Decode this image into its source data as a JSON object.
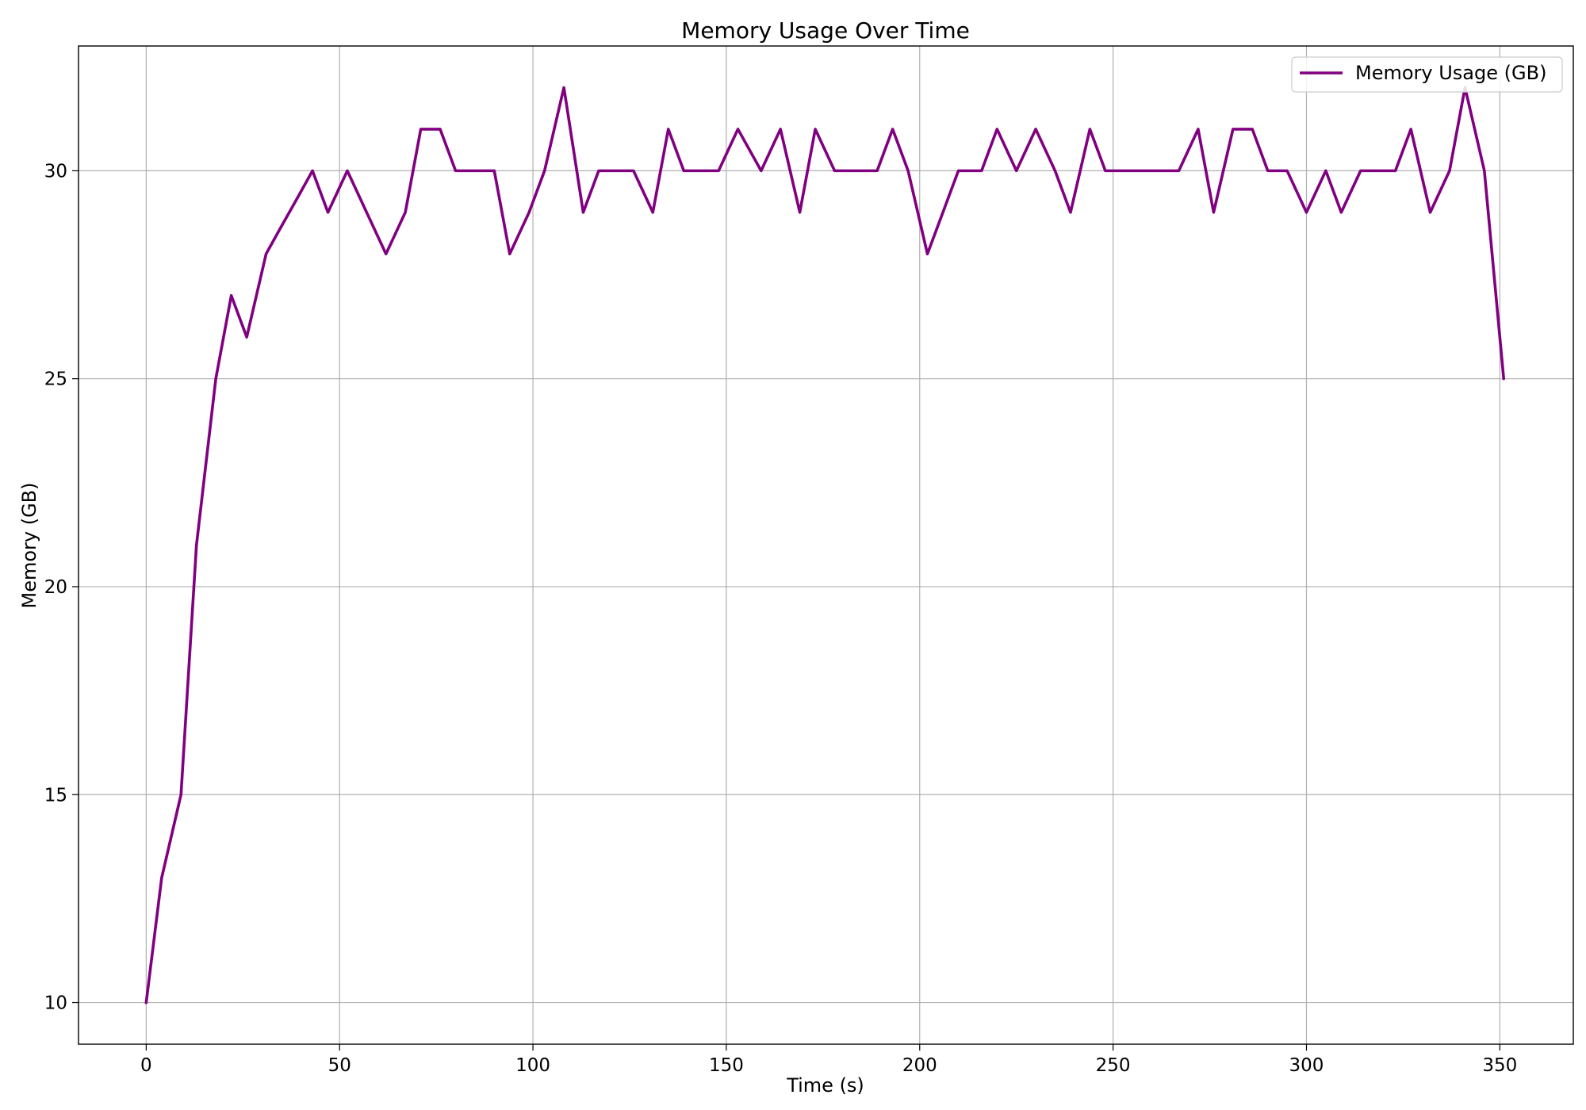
{
  "chart_data": {
    "type": "line",
    "title": "Memory Usage Over Time",
    "xlabel": "Time (s)",
    "ylabel": "Memory (GB)",
    "xlim": [
      -17.5,
      369
    ],
    "ylim": [
      9.0,
      33.0
    ],
    "xticks": [
      0,
      50,
      100,
      150,
      200,
      250,
      300,
      350
    ],
    "yticks": [
      10,
      15,
      20,
      25,
      30
    ],
    "grid": true,
    "legend_position": "top-right",
    "series": [
      {
        "name": "Memory Usage (GB)",
        "color": "#800080",
        "x": [
          0,
          4,
          9,
          13,
          18,
          22,
          26,
          31,
          35,
          39,
          43,
          47,
          52,
          57,
          62,
          67,
          71,
          76,
          80,
          85,
          90,
          94,
          99,
          103,
          108,
          113,
          117,
          122,
          126,
          131,
          135,
          139,
          144,
          148,
          153,
          159,
          164,
          169,
          173,
          178,
          183,
          189,
          193,
          197,
          202,
          206,
          210,
          216,
          220,
          225,
          230,
          235,
          239,
          244,
          248,
          253,
          258,
          263,
          267,
          272,
          276,
          281,
          286,
          290,
          295,
          300,
          305,
          309,
          314,
          319,
          323,
          327,
          332,
          337,
          341,
          346,
          351
        ],
        "values": [
          10,
          13,
          15,
          21,
          25,
          27,
          26,
          28,
          28.67,
          29.33,
          30,
          29,
          30,
          29,
          28,
          29,
          31,
          31,
          30,
          30,
          30,
          28,
          29,
          30,
          32,
          29,
          30,
          30,
          30,
          29,
          31,
          30,
          30,
          30,
          31,
          30,
          31,
          29,
          31,
          30,
          30,
          30,
          31,
          30,
          28,
          29,
          30,
          30,
          31,
          30,
          31,
          30,
          29,
          31,
          30,
          30,
          30,
          30,
          30,
          31,
          29,
          31,
          31,
          30,
          30,
          29,
          30,
          29,
          30,
          30,
          30,
          31,
          29,
          30,
          32,
          30,
          25
        ]
      }
    ]
  }
}
